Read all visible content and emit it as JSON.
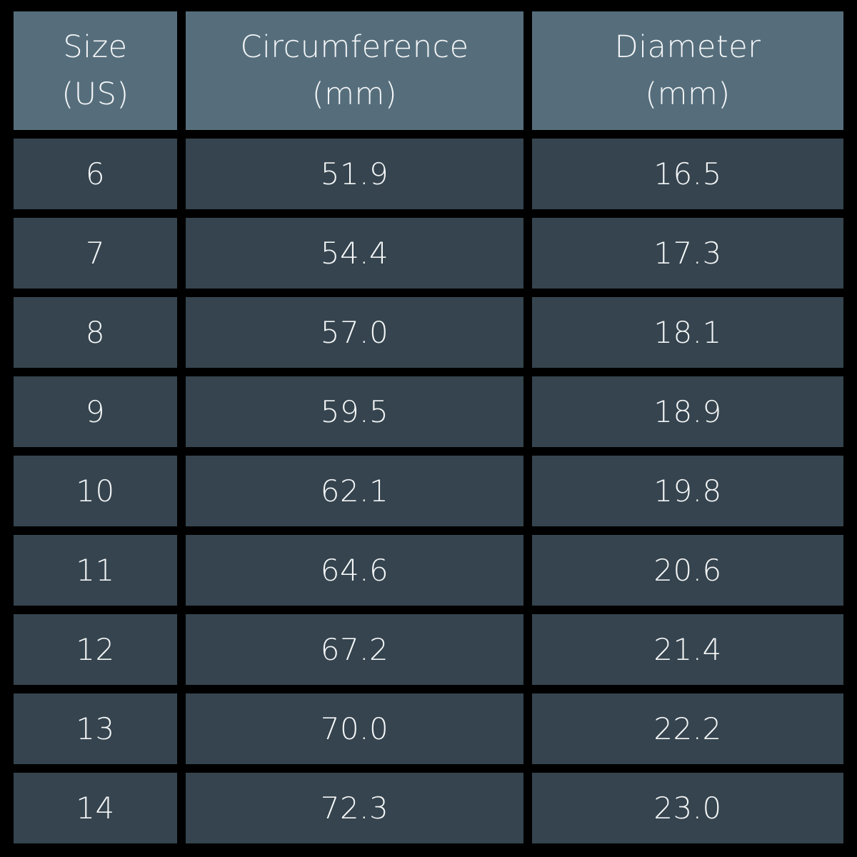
{
  "headers": [
    {
      "line1": "Size",
      "line2": "(US)"
    },
    {
      "line1": "Circumference",
      "line2": "(mm)"
    },
    {
      "line1": "Diameter",
      "line2": "(mm)"
    }
  ],
  "rows": [
    [
      "6",
      "51.9",
      "16.5"
    ],
    [
      "7",
      "54.4",
      "17.3"
    ],
    [
      "8",
      "57.0",
      "18.1"
    ],
    [
      "9",
      "59.5",
      "18.9"
    ],
    [
      "10",
      "62.1",
      "19.8"
    ],
    [
      "11",
      "64.6",
      "20.6"
    ],
    [
      "12",
      "67.2",
      "21.4"
    ],
    [
      "13",
      "70.0",
      "22.2"
    ],
    [
      "14",
      "72.3",
      "23.0"
    ]
  ],
  "colors": {
    "background": "#000000",
    "header": "#566e7c",
    "row": "#35444e",
    "text": "#f4f6f7"
  }
}
